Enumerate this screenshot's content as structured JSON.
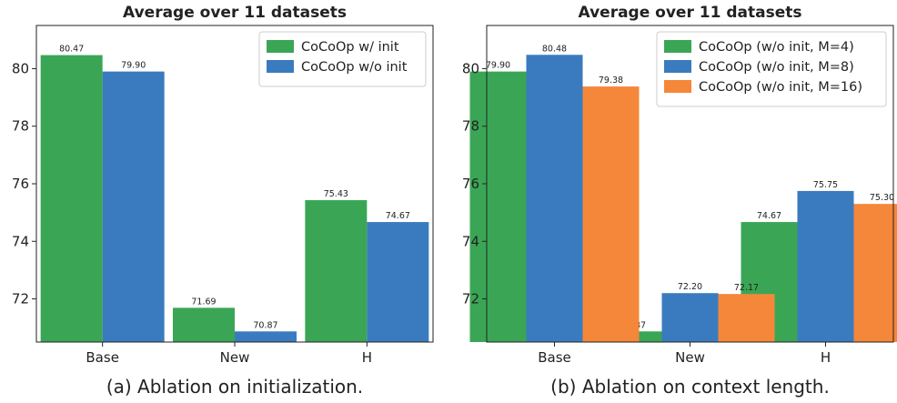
{
  "chart_data": [
    {
      "type": "bar",
      "title": "Average over 11 datasets",
      "caption": "(a) Ablation on initialization.",
      "categories": [
        "Base",
        "New",
        "H"
      ],
      "series": [
        {
          "name": "CoCoOp w/ init",
          "color": "#3aa655",
          "values": [
            80.47,
            71.69,
            75.43
          ]
        },
        {
          "name": "CoCoOp w/o init",
          "color": "#3a7bbf",
          "values": [
            79.9,
            70.87,
            74.67
          ]
        }
      ],
      "value_labels": [
        [
          "80.47",
          "71.69",
          "75.43"
        ],
        [
          "79.90",
          "70.87",
          "74.67"
        ]
      ],
      "yticks": [
        "72",
        "74",
        "76",
        "78",
        "80"
      ],
      "ylim": [
        70.5,
        81.5
      ],
      "xlabel": "",
      "ylabel": "",
      "legend": "top-right",
      "grid": false
    },
    {
      "type": "bar",
      "title": "Average over 11 datasets",
      "caption": "(b) Ablation on context length.",
      "categories": [
        "Base",
        "New",
        "H"
      ],
      "series": [
        {
          "name": "CoCoOp (w/o init, M=4)",
          "color": "#3aa655",
          "values": [
            79.9,
            70.87,
            74.67
          ]
        },
        {
          "name": "CoCoOp (w/o init, M=8)",
          "color": "#3a7bbf",
          "values": [
            80.48,
            72.2,
            75.75
          ]
        },
        {
          "name": "CoCoOp (w/o init, M=16)",
          "color": "#f5873a",
          "values": [
            79.38,
            72.17,
            75.3
          ]
        }
      ],
      "value_labels": [
        [
          "79.90",
          "70.87",
          "74.67"
        ],
        [
          "80.48",
          "72.20",
          "75.75"
        ],
        [
          "79.38",
          "72.17",
          "75.30"
        ]
      ],
      "yticks": [
        "72",
        "74",
        "76",
        "78",
        "80"
      ],
      "ylim": [
        70.5,
        81.5
      ],
      "xlabel": "",
      "ylabel": "",
      "legend": "top-right",
      "grid": false
    }
  ]
}
